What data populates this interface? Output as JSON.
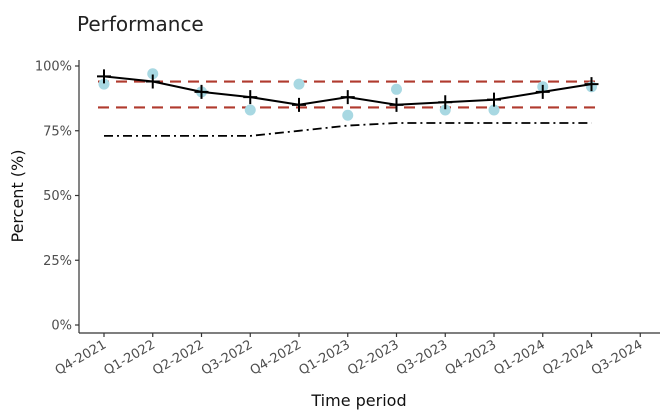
{
  "chart_data": {
    "type": "line",
    "title": "Performance",
    "xlabel": "Time period",
    "ylabel": "Percent (%)",
    "categories": [
      "Q4-2021",
      "Q1-2022",
      "Q2-2022",
      "Q3-2022",
      "Q4-2022",
      "Q1-2023",
      "Q2-2023",
      "Q3-2023",
      "Q4-2023",
      "Q1-2024",
      "Q2-2024",
      "Q3-2024"
    ],
    "y_ticks": [
      "0%",
      "25%",
      "50%",
      "75%",
      "100%"
    ],
    "ylim": [
      0,
      100
    ],
    "grid": false,
    "series": [
      {
        "role": "performance-line",
        "style": "solid",
        "marker": "plus",
        "color": "#000000",
        "values": [
          96,
          94,
          90,
          88,
          85,
          88,
          85,
          86,
          87,
          90,
          93,
          null
        ]
      },
      {
        "role": "observed-points",
        "style": "points",
        "color": "#a8d8e2",
        "values": [
          93,
          97,
          90,
          83,
          93,
          81,
          91,
          83,
          83,
          92,
          92,
          null
        ]
      },
      {
        "role": "target-line",
        "style": "dash-dot",
        "color": "#000000",
        "values": [
          73,
          73,
          73,
          73,
          75,
          77,
          78,
          78,
          78,
          78,
          78,
          null
        ]
      }
    ],
    "reference_lines": [
      {
        "role": "upper-limit",
        "value": 94,
        "style": "dashed",
        "color": "#b03a2e",
        "from": "Q4-2021",
        "to": "Q2-2024"
      },
      {
        "role": "lower-limit",
        "value": 84,
        "style": "dashed",
        "color": "#b03a2e",
        "from": "Q4-2021",
        "to": "Q2-2024"
      }
    ]
  }
}
